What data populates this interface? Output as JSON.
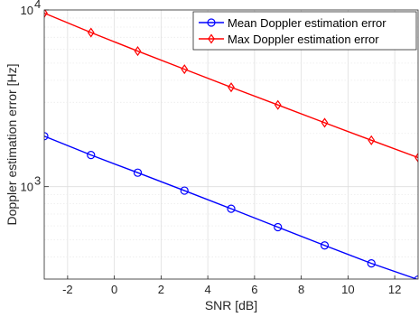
{
  "chart_data": {
    "type": "line",
    "xlabel": "SNR [dB]",
    "ylabel": "Doppler estimation error [Hz]",
    "xlim": [
      -3,
      13
    ],
    "ylim": [
      300,
      10000
    ],
    "yscale": "log",
    "grid": true,
    "legend_position": "top-right",
    "x_ticks": [
      -2,
      0,
      2,
      4,
      6,
      8,
      10,
      12
    ],
    "x_tick_labels": [
      "-2",
      "0",
      "2",
      "4",
      "6",
      "8",
      "10",
      "12"
    ],
    "y_ticks": [
      1000,
      10000
    ],
    "y_tick_labels": [
      {
        "base": "10",
        "exp": "3"
      },
      {
        "base": "10",
        "exp": "4"
      }
    ],
    "x": [
      -3,
      -1,
      1,
      3,
      5,
      7,
      9,
      11,
      13
    ],
    "series": [
      {
        "name": "Mean Doppler estimation error",
        "color": "#0000ff",
        "marker": "circle",
        "values": [
          1930,
          1510,
          1200,
          950,
          750,
          590,
          465,
          368,
          298
        ]
      },
      {
        "name": "Max Doppler estimation error",
        "color": "#ff0000",
        "marker": "diamond",
        "values": [
          9600,
          7450,
          5850,
          4620,
          3650,
          2900,
          2300,
          1830,
          1460
        ]
      }
    ]
  }
}
